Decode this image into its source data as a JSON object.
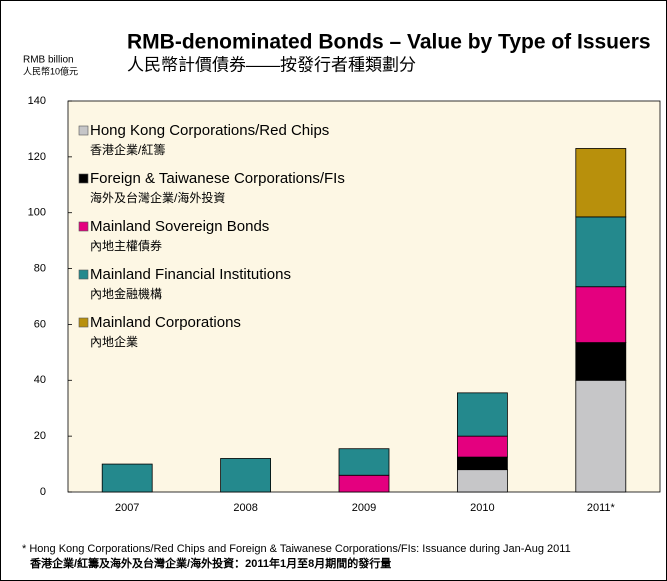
{
  "chart_data": {
    "type": "stacked_bar",
    "title": "RMB-denominated Bonds – Value by Type of Issuers",
    "subtitle": "人民幣計價債券——按發行者種類劃分",
    "y_label": "RMB billion",
    "y_label_zh": "人民幣10億元",
    "categories": [
      "2007",
      "2008",
      "2009",
      "2010",
      "2011*"
    ],
    "series": [
      {
        "name": "Hong Kong Corporations/Red Chips",
        "name_zh": "香港企業/紅籌",
        "color": "#c6c6c8",
        "values": [
          null,
          null,
          null,
          8,
          40
        ]
      },
      {
        "name": "Foreign & Taiwanese Corporations/FIs",
        "name_zh": "海外及台灣企業/海外投資",
        "color": "#000000",
        "values": [
          null,
          null,
          null,
          4.5,
          13.5
        ]
      },
      {
        "name": "Mainland Sovereign Bonds",
        "name_zh": "內地主權債券",
        "color": "#e4007f",
        "values": [
          null,
          null,
          6,
          7.5,
          20
        ]
      },
      {
        "name": "Mainland Financial Institutions",
        "name_zh": "內地金融機構",
        "color": "#24898d",
        "values": [
          10,
          12,
          9.5,
          15.5,
          25
        ]
      },
      {
        "name": "Mainland Corporations",
        "name_zh": "內地企業",
        "color": "#b8900c",
        "values": [
          null,
          null,
          null,
          null,
          24.5
        ]
      }
    ],
    "ylim": [
      0,
      140
    ],
    "yticks": [
      0,
      20,
      40,
      60,
      80,
      100,
      120,
      140
    ],
    "footnote": "* Hong Kong Corporations/Red Chips and Foreign & Taiwanese Corporations/FIs: Issuance during Jan-Aug 2011",
    "footnote_zh": "香港企業/紅籌及海外及台灣企業/海外投資：2011年1月至8月期間的發行量"
  }
}
